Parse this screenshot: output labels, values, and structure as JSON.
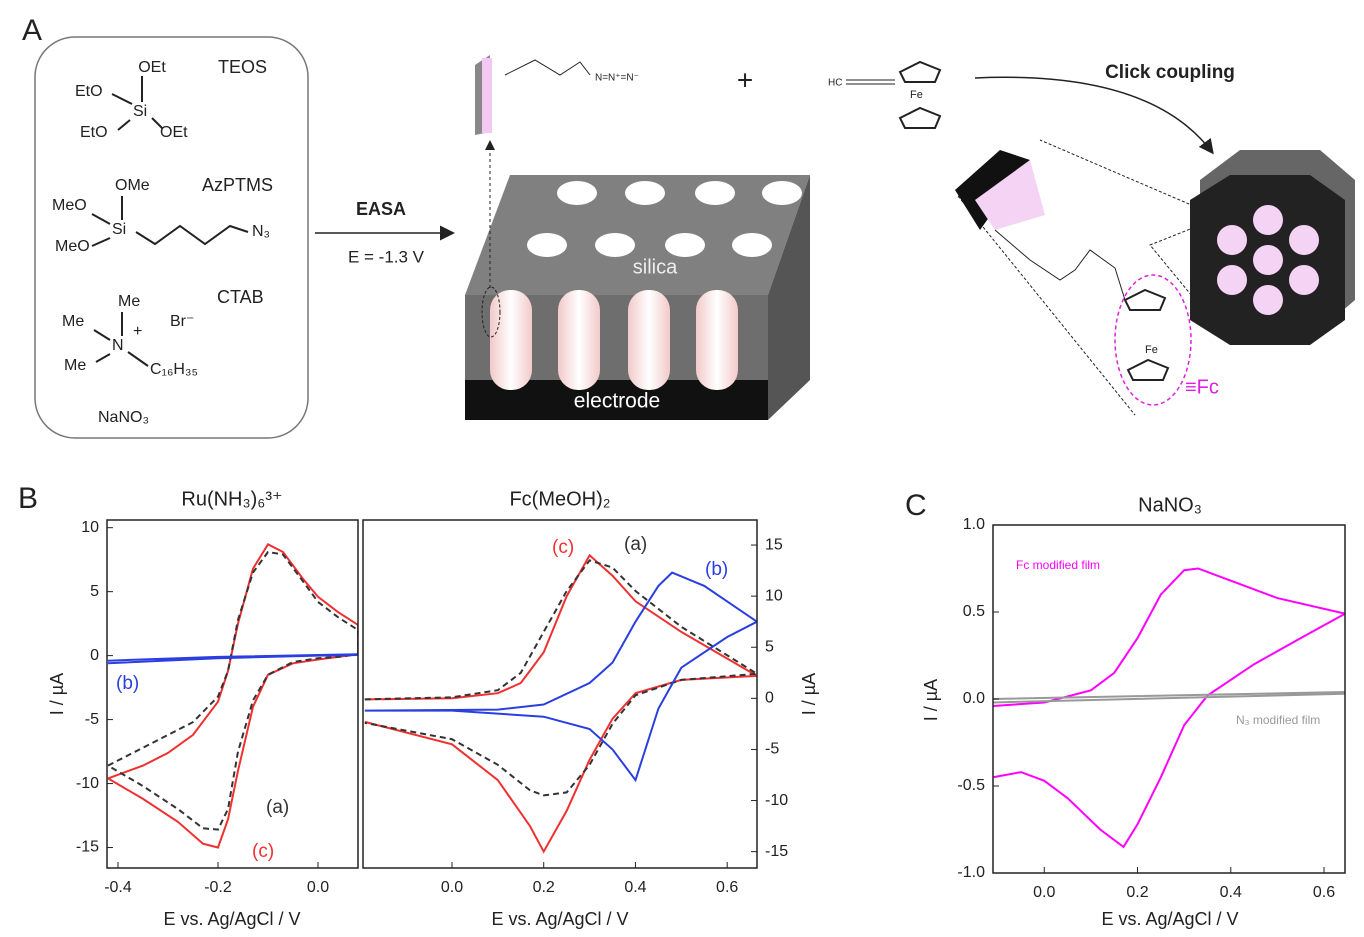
{
  "panel_labels": [
    "A",
    "B",
    "C"
  ],
  "panel_a": {
    "reagents": [
      {
        "name": "TEOS",
        "atoms": [
          "OEt",
          "EtO",
          "Si",
          "EtO",
          "OEt"
        ]
      },
      {
        "name": "AzPTMS",
        "atoms": [
          "OMe",
          "MeO",
          "Si",
          "MeO",
          "N₃"
        ]
      },
      {
        "name": "CTAB",
        "atoms": [
          "Me",
          "Me",
          "N",
          "+",
          "Me",
          "Br⁻",
          "C₁₆H₃₅"
        ]
      },
      {
        "name": "NaNO₃"
      }
    ],
    "step_1": "EASA",
    "potential": "E = -1.3 V",
    "film": "silica",
    "substrate": "electrode",
    "azide": "N=N⁺=N⁻",
    "plus": "+",
    "alkyne": "HC",
    "iron": "Fe",
    "step_2": "Click coupling",
    "ferrocene": "≡Fc"
  },
  "chart_data": [
    {
      "type": "line",
      "title": "Ru(NH₃)₆³⁺",
      "x_label": "E vs. Ag/AgCl / V",
      "y_label": "I / µA",
      "xlim": [
        -0.422,
        0.08
      ],
      "ylim": [
        -16.6,
        10.6
      ],
      "xticks": [
        -0.4,
        -0.2,
        {
          "value": 0,
          "label": "0.0"
        }
      ],
      "yticks": [
        -15,
        -10,
        -5,
        0,
        5,
        10
      ],
      "grid": false,
      "series": [
        {
          "name": "(c)",
          "color": "#f03030",
          "dash": false,
          "x": [
            -0.42,
            -0.35,
            -0.3,
            -0.25,
            -0.2,
            -0.18,
            -0.16,
            -0.13,
            -0.1,
            -0.07,
            -0.03,
            0.0,
            0.04,
            0.08,
            0.08,
            0.04,
            0.0,
            -0.05,
            -0.1,
            -0.13,
            -0.16,
            -0.18,
            -0.2,
            -0.23,
            -0.28,
            -0.35,
            -0.42
          ],
          "values": [
            -9.6,
            -8.6,
            -7.6,
            -6.2,
            -3.6,
            -1.2,
            2.5,
            6.8,
            8.7,
            8.1,
            6.0,
            4.6,
            3.4,
            2.4,
            0.1,
            -0.1,
            -0.3,
            -0.6,
            -1.5,
            -4,
            -9,
            -12.8,
            -15,
            -14.7,
            -13,
            -11.2,
            -9.6
          ]
        },
        {
          "name": "(a)",
          "color": "#333333",
          "dash": true,
          "x": [
            -0.42,
            -0.35,
            -0.3,
            -0.25,
            -0.2,
            -0.18,
            -0.16,
            -0.13,
            -0.1,
            -0.07,
            -0.03,
            0.0,
            0.04,
            0.08,
            0.08,
            0.04,
            0.0,
            -0.05,
            -0.1,
            -0.13,
            -0.16,
            -0.18,
            -0.2,
            -0.23,
            -0.28,
            -0.35,
            -0.42
          ],
          "values": [
            -8.6,
            -7.2,
            -6.2,
            -5.2,
            -3.2,
            -1.2,
            2.8,
            6.5,
            8.1,
            7.9,
            5.8,
            4.2,
            3.0,
            2.0,
            0.1,
            -0.1,
            -0.2,
            -0.5,
            -1.5,
            -3.5,
            -7.5,
            -12,
            -13.6,
            -13.5,
            -12,
            -10.2,
            -8.6
          ]
        },
        {
          "name": "(b)",
          "color": "#2b3fe0",
          "dash": false,
          "x": [
            -0.42,
            -0.2,
            0.0,
            0.08,
            0.08,
            0.0,
            -0.2,
            -0.42
          ],
          "values": [
            -0.4,
            -0.1,
            0.05,
            0.1,
            0.05,
            0.0,
            -0.2,
            -0.6
          ]
        }
      ]
    },
    {
      "type": "line",
      "title": "Fc(MeOH)₂",
      "x_label": "E vs. Ag/AgCl / V",
      "y_label": "I / µA",
      "xlim": [
        -0.194,
        0.665
      ],
      "ylim": [
        -16.6,
        17.45
      ],
      "xticks": [
        {
          "value": 0,
          "label": "0.0"
        },
        0.2,
        0.4,
        0.6
      ],
      "yticks": [
        -15,
        -10,
        -5,
        0,
        5,
        10,
        15
      ],
      "grid": false,
      "series": [
        {
          "name": "(c)",
          "color": "#f03030",
          "dash": false,
          "x": [
            -0.19,
            0.0,
            0.1,
            0.15,
            0.2,
            0.25,
            0.3,
            0.35,
            0.4,
            0.5,
            0.665,
            0.665,
            0.5,
            0.4,
            0.35,
            0.3,
            0.25,
            0.2,
            0.17,
            0.1,
            0.0,
            -0.19
          ],
          "values": [
            -0.1,
            0.0,
            0.5,
            1.5,
            4.5,
            10,
            14,
            12,
            9.5,
            6.5,
            2.2,
            2.2,
            1.8,
            0.5,
            -2,
            -6,
            -11,
            -15,
            -12.5,
            -8,
            -4.5,
            -2.3
          ]
        },
        {
          "name": "(a)",
          "color": "#333333",
          "dash": true,
          "x": [
            -0.19,
            0.0,
            0.1,
            0.15,
            0.2,
            0.25,
            0.3,
            0.35,
            0.4,
            0.5,
            0.665,
            0.665,
            0.5,
            0.4,
            0.35,
            0.3,
            0.25,
            0.2,
            0.17,
            0.1,
            0.0,
            -0.19
          ],
          "values": [
            -0.1,
            0.1,
            0.8,
            2.5,
            6.5,
            10.5,
            13.5,
            12.8,
            10.5,
            7,
            2.4,
            2.4,
            1.8,
            0.3,
            -2.5,
            -6.5,
            -9.2,
            -9.5,
            -9,
            -6.5,
            -4,
            -2.4
          ]
        },
        {
          "name": "(b)",
          "color": "#2b3fe0",
          "dash": false,
          "x": [
            -0.19,
            0.1,
            0.2,
            0.3,
            0.35,
            0.4,
            0.45,
            0.48,
            0.55,
            0.665,
            0.665,
            0.6,
            0.5,
            0.45,
            0.4,
            0.35,
            0.3,
            0.2,
            0.0,
            -0.19
          ],
          "values": [
            -1.2,
            -1.1,
            -0.6,
            1.5,
            3.5,
            7.5,
            11,
            12.3,
            11,
            7.5,
            7.5,
            6,
            3,
            -1,
            -8,
            -5,
            -3,
            -1.8,
            -1.2,
            -1.2
          ]
        }
      ]
    },
    {
      "type": "line",
      "title": "NaNO₃",
      "x_label": "E vs. Ag/AgCl / V",
      "y_label": "I / µA",
      "xlim": [
        -0.11,
        0.645
      ],
      "ylim": [
        -1,
        1
      ],
      "xticks": [
        {
          "value": 0,
          "label": "0.0"
        },
        0.2,
        0.4,
        0.6
      ],
      "yticks": [
        {
          "value": -1,
          "label": "-1.0"
        },
        -0.5,
        {
          "value": 0,
          "label": "0.0"
        },
        0.5,
        {
          "value": 1,
          "label": "1.0"
        }
      ],
      "grid": false,
      "series": [
        {
          "name": "Fc modified film",
          "color": "#ff00ff",
          "dash": false,
          "x": [
            -0.11,
            0.0,
            0.1,
            0.15,
            0.2,
            0.25,
            0.3,
            0.33,
            0.4,
            0.5,
            0.645,
            0.645,
            0.55,
            0.45,
            0.35,
            0.3,
            0.25,
            0.2,
            0.17,
            0.12,
            0.05,
            0.0,
            -0.05,
            -0.11
          ],
          "values": [
            -0.04,
            -0.02,
            0.05,
            0.15,
            0.35,
            0.6,
            0.74,
            0.75,
            0.68,
            0.58,
            0.49,
            0.49,
            0.35,
            0.2,
            0.02,
            -0.15,
            -0.45,
            -0.72,
            -0.85,
            -0.75,
            -0.57,
            -0.47,
            -0.42,
            -0.45
          ]
        },
        {
          "name": "N₃ modified film",
          "color": "#999999",
          "dash": false,
          "x": [
            -0.11,
            0.645,
            0.645,
            -0.11
          ],
          "values": [
            0.0,
            0.04,
            0.03,
            -0.02
          ]
        }
      ]
    }
  ]
}
